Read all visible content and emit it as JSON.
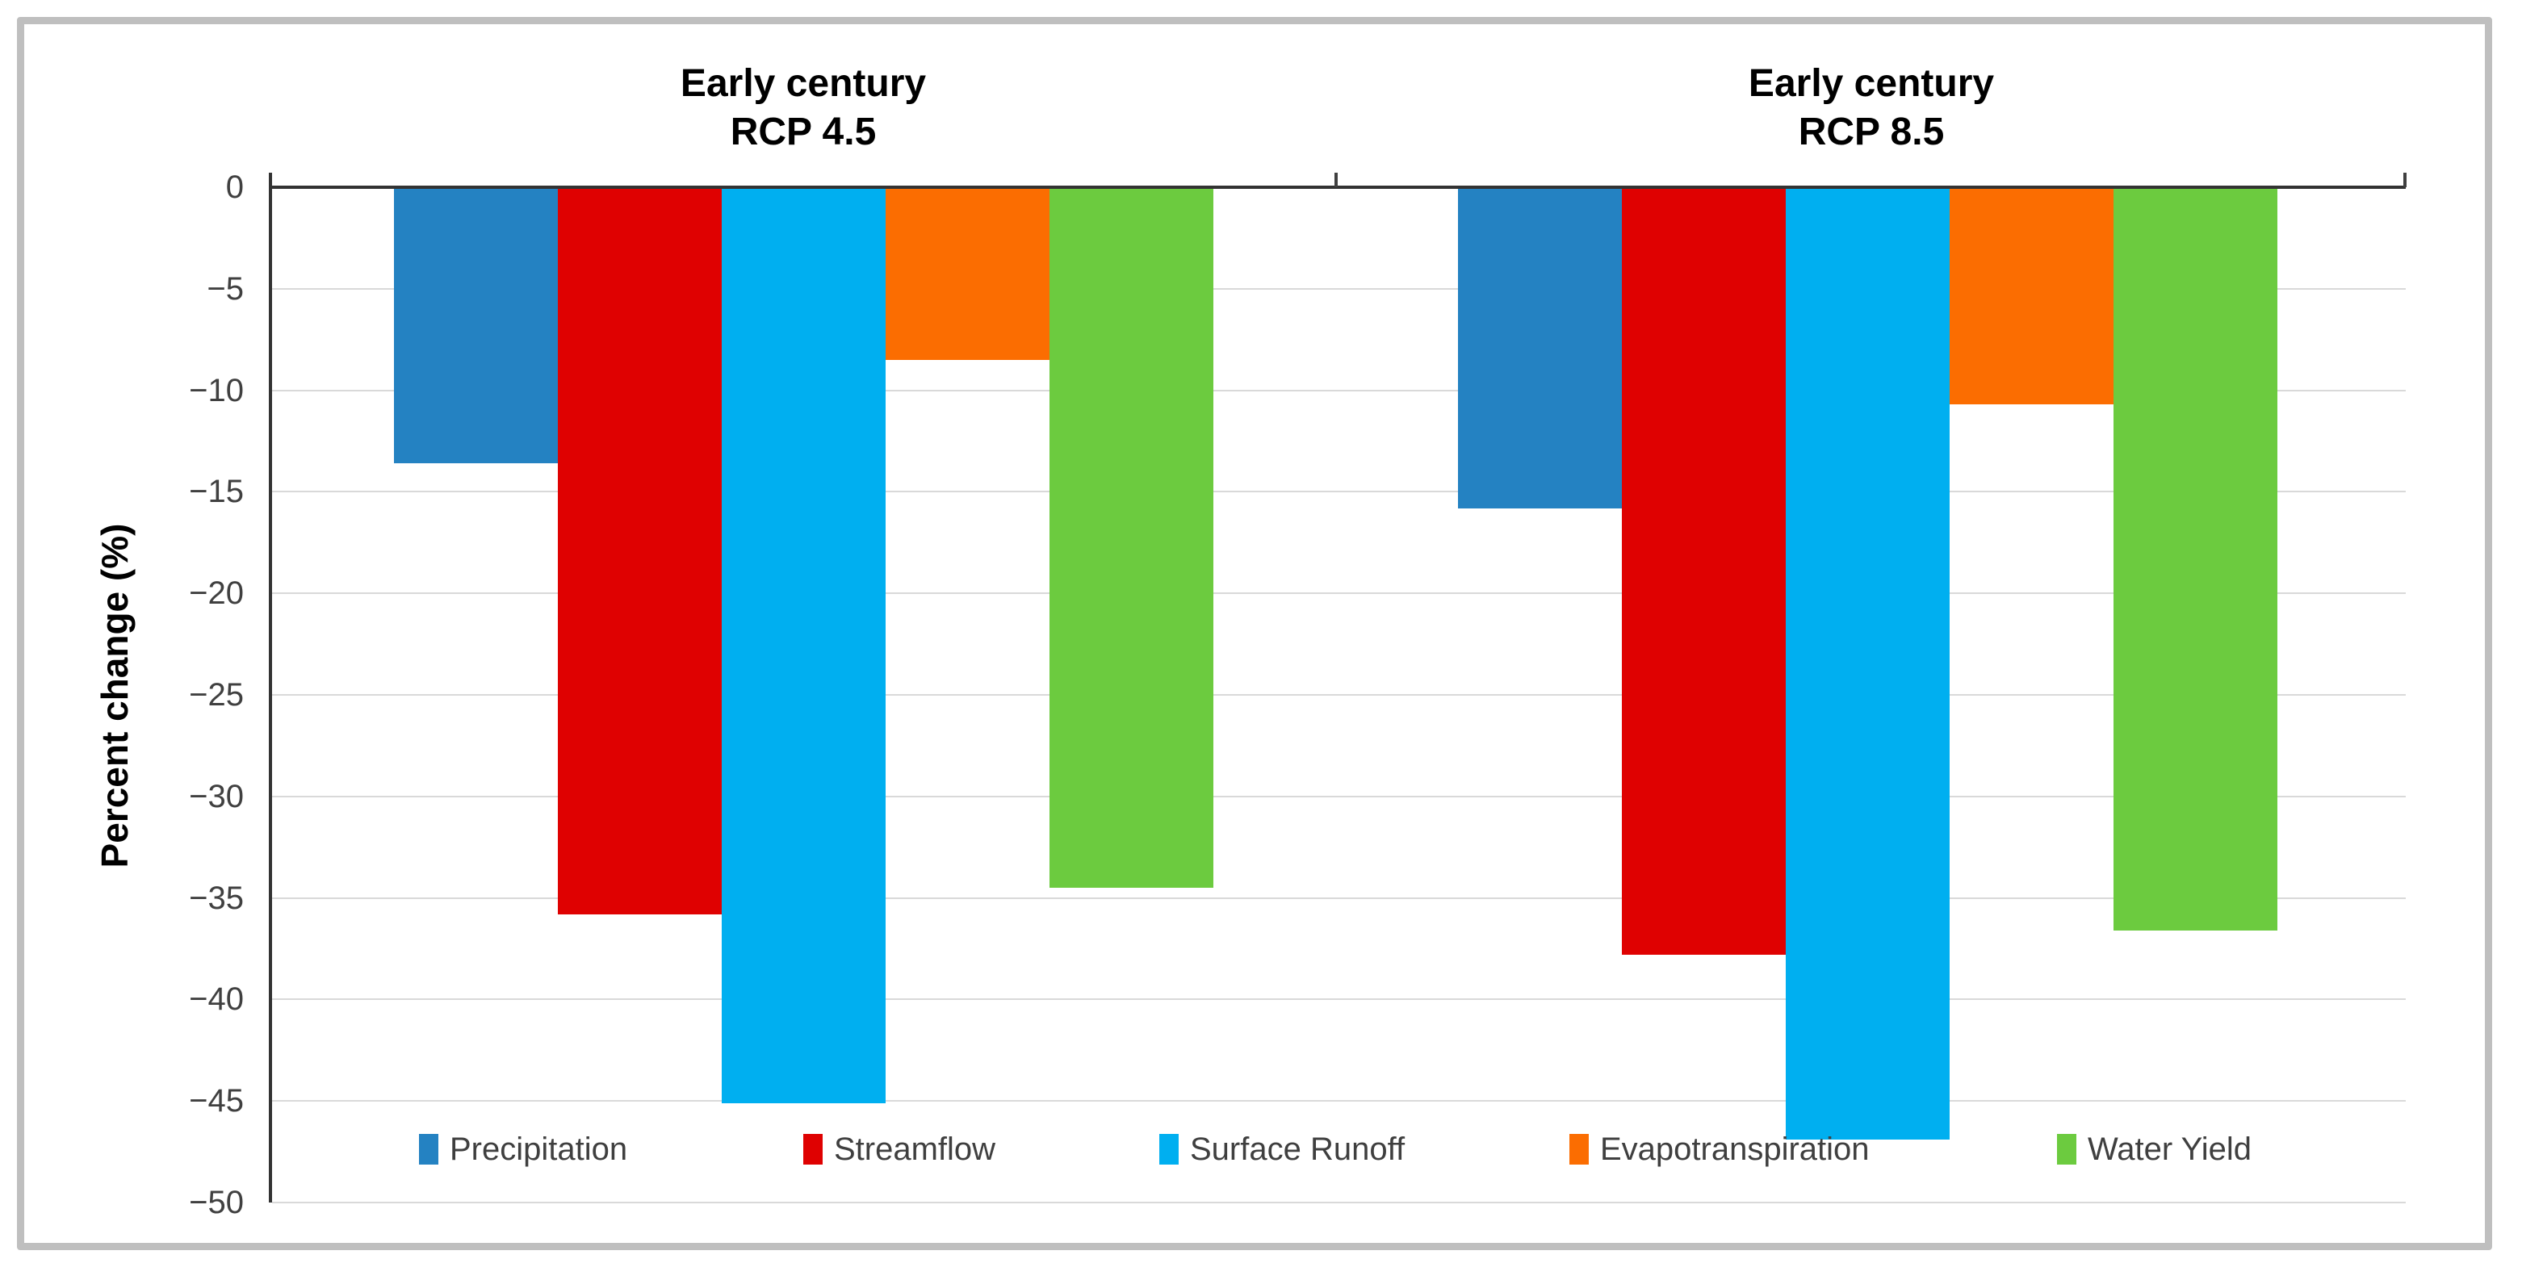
{
  "figure": {
    "y_axis_title": "Percent change (%)",
    "group_titles": [
      {
        "line1": "Early century",
        "line2": "RCP 4.5"
      },
      {
        "line1": "Early century",
        "line2": "RCP 8.5"
      }
    ]
  },
  "chart_data": {
    "type": "bar",
    "groups": [
      "Early century RCP 4.5",
      "Early century RCP 8.5"
    ],
    "series": [
      {
        "name": "Precipitation",
        "color": "#2482C2",
        "values": [
          -13.6,
          -15.8
        ]
      },
      {
        "name": "Streamflow",
        "color": "#DF0101",
        "values": [
          -35.8,
          -37.8
        ]
      },
      {
        "name": "Surface Runoff",
        "color": "#00AFF0",
        "values": [
          -45.1,
          -46.9
        ]
      },
      {
        "name": "Evapotranspiration",
        "color": "#FB6D01",
        "values": [
          -8.5,
          -10.7
        ]
      },
      {
        "name": "Water Yield",
        "color": "#6CCB3F",
        "values": [
          -34.5,
          -36.6
        ]
      }
    ],
    "ylabel": "Percent change (%)",
    "ylim": [
      -50,
      0
    ],
    "yticks": [
      "0",
      "−5",
      "−10",
      "−15",
      "−20",
      "−25",
      "−30",
      "−35",
      "−40",
      "−45",
      "−50"
    ],
    "grid": true,
    "legend_position": "bottom-inside",
    "legend": [
      "Precipitation",
      "Streamflow",
      "Surface Runoff",
      "Evapotranspiration",
      "Water Yield"
    ]
  },
  "colors": {
    "gridline": "#d9d9d9",
    "axis_line": "#333333",
    "tick_label": "#404040",
    "legend_text": "#3f3f3f",
    "frame_border": "#bfbfbf",
    "background": "#ffffff"
  }
}
